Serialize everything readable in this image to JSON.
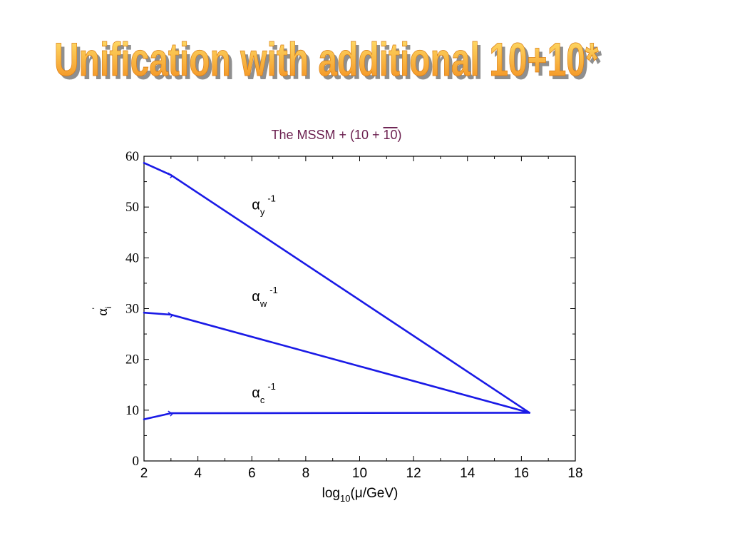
{
  "slide": {
    "title": "Unification with additional 10+10*"
  },
  "colors": {
    "title_fill_top": "#ffe36e",
    "title_fill_bottom": "#f28a1a",
    "title_shadow": "#8f8f8f",
    "chart_title": "#6b1f4f",
    "series": "#1a1ae6"
  },
  "chart_data": {
    "type": "line",
    "title": "The MSSM  +  (10 + 10)",
    "title_overline_part": "10",
    "xlabel": "log10(μ/GeV)",
    "xlabel_parts": {
      "pre": "log",
      "sub": "10",
      "post": "(μ/GeV)"
    },
    "ylabel": "αi'",
    "ylabel_parts": {
      "base": "α",
      "sub": "i",
      "sup": "'"
    },
    "xlim": [
      2,
      18
    ],
    "ylim": [
      0,
      60
    ],
    "xticks": [
      2,
      4,
      6,
      8,
      10,
      12,
      14,
      16,
      18
    ],
    "yticks": [
      0,
      10,
      20,
      30,
      40,
      50,
      60
    ],
    "grid": false,
    "series": [
      {
        "name": "αy-1",
        "label": {
          "base": "α",
          "sub": "y",
          "sup": "-1",
          "x": 6.0,
          "y": 49.5
        },
        "points": [
          [
            2.0,
            58.7
          ],
          [
            3.0,
            56.3
          ],
          [
            16.3,
            9.5
          ]
        ]
      },
      {
        "name": "αw-1",
        "label": {
          "base": "α",
          "sub": "w",
          "sup": "-1",
          "x": 6.0,
          "y": 31.5
        },
        "points": [
          [
            2.0,
            29.2
          ],
          [
            3.0,
            28.8
          ],
          [
            16.3,
            9.5
          ]
        ]
      },
      {
        "name": "αc-1",
        "label": {
          "base": "α",
          "sub": "c",
          "sup": "-1",
          "x": 6.0,
          "y": 12.5
        },
        "points": [
          [
            2.0,
            8.2
          ],
          [
            3.0,
            9.4
          ],
          [
            16.3,
            9.5
          ]
        ]
      }
    ]
  }
}
